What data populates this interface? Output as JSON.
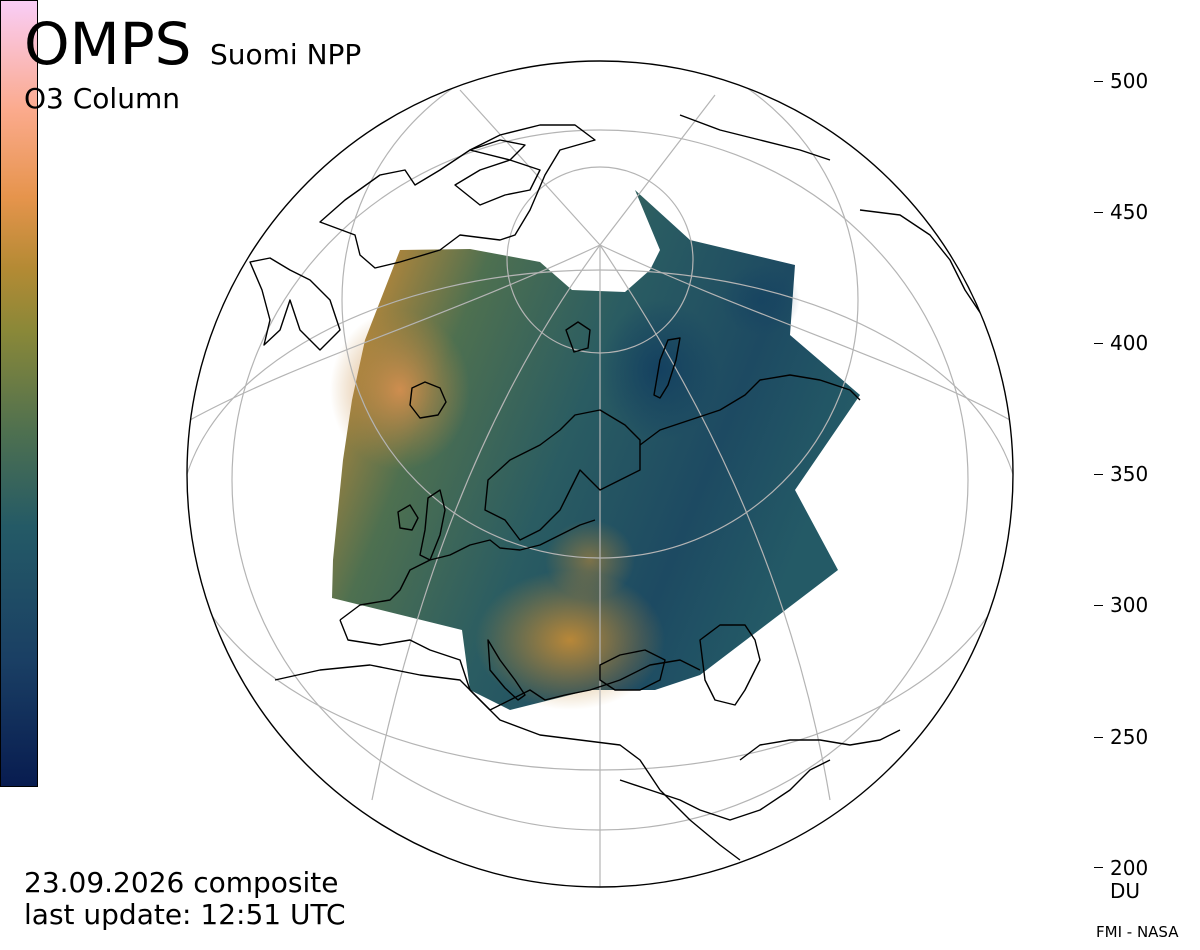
{
  "header": {
    "instrument": "OMPS",
    "satellite": "Suomi NPP",
    "product": "O3 Column"
  },
  "footer": {
    "date_text": "23.09.2026 composite",
    "update_text": "last update: 12:51 UTC",
    "credit": "FMI - NASA"
  },
  "colorbar": {
    "ticks": [
      "500",
      "450",
      "400",
      "350",
      "300",
      "250",
      "200"
    ],
    "unit": "DU",
    "range": [
      200,
      500
    ],
    "colors": [
      "#081c50",
      "#245a66",
      "#8a8838",
      "#e6944c",
      "#f9cdf6"
    ]
  },
  "map": {
    "projection": "orthographic",
    "region": "Europe and North Atlantic",
    "gridline_color": "#b4b4b4",
    "coastline_color": "#000000"
  }
}
